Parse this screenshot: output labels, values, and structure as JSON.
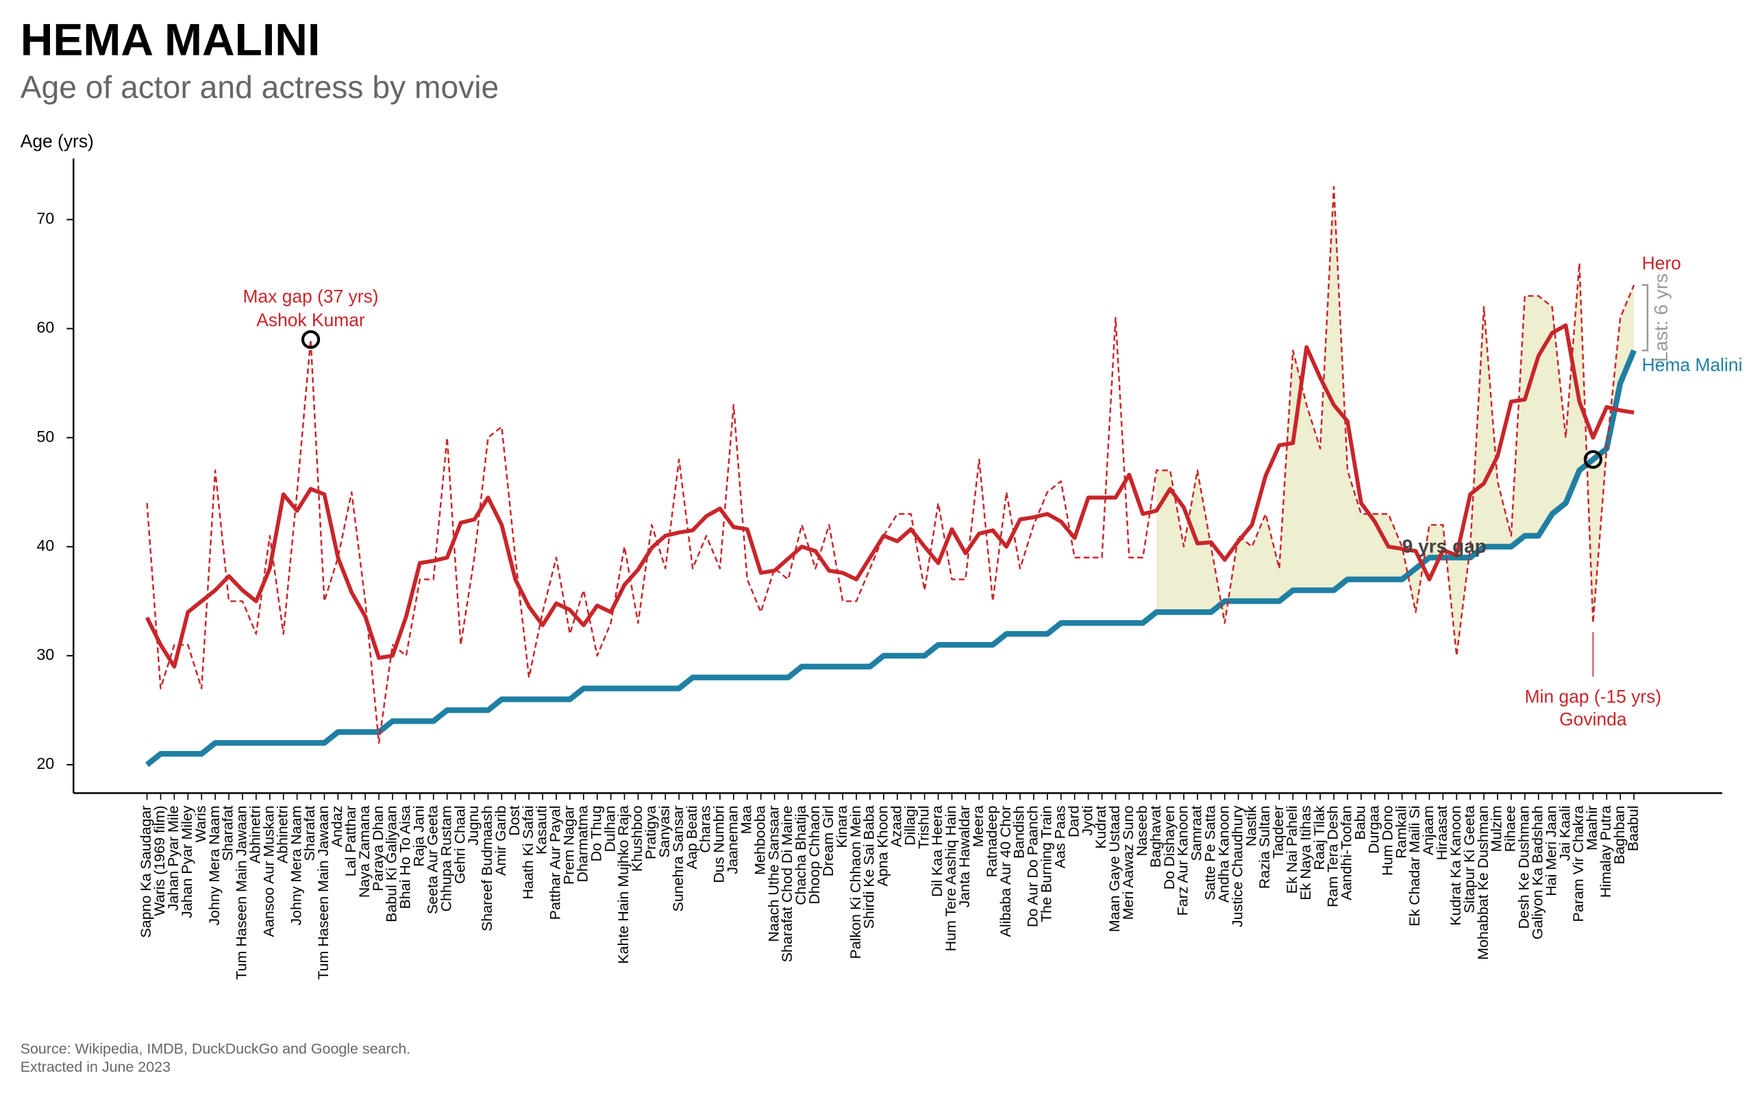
{
  "chart_data": {
    "type": "line",
    "title": "HEMA MALINI",
    "subtitle": "Age of actor and actress by movie",
    "y_label": "Age (yrs)",
    "source": [
      "Source: Wikipedia, IMDB, DuckDuckGo and Google search.",
      "Extracted in June 2023"
    ],
    "categories": [
      "Sapno Ka Saudagar",
      "Waris (1969 film)",
      "Jahan Pyar Mile",
      "Jahan Pyar Miley",
      "Waris",
      "Johny Mera Naam",
      "Sharafat",
      "Tum Haseen Main Jawaan",
      "Abhinetri",
      "Aansoo Aur Muskan",
      "Abhinetri",
      "Johny Mera Naam",
      "Sharafat",
      "Tum Haseen Main Jawaan",
      "Andaz",
      "Lal Patthar",
      "Naya Zamana",
      "Paraya Dhan",
      "Babul Ki Galiyaan",
      "Bhai Ho To Aisa",
      "Raja Jani",
      "Seeta Aur Geeta",
      "Chhupa Rustam",
      "Gehri Chaal",
      "Jugnu",
      "Shareef Budmaash",
      "Amir Garib",
      "Dost",
      "Haath Ki Safai",
      "Kasauti",
      "Patthar Aur Payal",
      "Prem Nagar",
      "Dharmatma",
      "Do Thug",
      "Dulhan",
      "Kahte Hain Mujhko Raja",
      "Khushboo",
      "Pratigya",
      "Sanyasi",
      "Sunehra Sansar",
      "Aap Beati",
      "Charas",
      "Dus Numbri",
      "Jaaneman",
      "Maa",
      "Mehbooba",
      "Naach Uthe Sansaar",
      "Sharafat Chod Di Maine",
      "Chacha Bhatija",
      "Dhoop Chhaon",
      "Dream Girl",
      "Kinara",
      "Palkon Ki Chhaon Mein",
      "Shirdi Ke Sai Baba",
      "Apna Khoon",
      "Azaad",
      "Dillagi",
      "Trishul",
      "Dil Kaa Heera",
      "Hum Tere Aashiq Hain",
      "Janta Hawaldar",
      "Meera",
      "Ratnadeep",
      "Alibaba Aur 40 Chor",
      "Bandish",
      "Do Aur Do Paanch",
      "The Burning Train",
      "Aas Paas",
      "Dard",
      "Jyoti",
      "Kudrat",
      "Maan Gaye Ustaad",
      "Meri Aawaz Suno",
      "Naseeb",
      "Baghavat",
      "Do Dishayen",
      "Farz Aur Kanoon",
      "Samraat",
      "Satte Pe Satta",
      "Andha Kanoon",
      "Justice Chaudhury",
      "Nastik",
      "Razia Sultan",
      "Taqdeer",
      "Ek Nai Paheli",
      "Ek Naya Itihas",
      "Raaj Tilak",
      "Ram Tera Desh",
      "Aandhi-Toofan",
      "Babu",
      "Durgaa",
      "Hum Dono",
      "Ramkali",
      "Ek Chadar Maili Si",
      "Anjaam",
      "Hiraasat",
      "Kudrat Ka Kanoon",
      "Sitapur Ki Geeta",
      "Mohabbat Ke Dushman",
      "Mulzim",
      "Rihaee",
      "Desh Ke Dushman",
      "Galiyon Ka Badshah",
      "Hai Meri Jaan",
      "Jai Kaali",
      "Param Vir Chakra",
      "Maahir",
      "Himalay Putra",
      "Baghban",
      "Baabul"
    ],
    "series": [
      {
        "name": "Hero",
        "color": "#c8262a",
        "dashed": true,
        "values": [
          44,
          27,
          31,
          31,
          27,
          47,
          35,
          35,
          32,
          41,
          32,
          45,
          59,
          35,
          39,
          45,
          35,
          22,
          31,
          30,
          37,
          37,
          50,
          31,
          39,
          50,
          51,
          39,
          28,
          34,
          39,
          32,
          36,
          30,
          33,
          40,
          33,
          42,
          38,
          48,
          38,
          41,
          38,
          53,
          37,
          34,
          38,
          37,
          42,
          38,
          42,
          35,
          35,
          38,
          41,
          43,
          43,
          36,
          44,
          37,
          37,
          48,
          35,
          45,
          38,
          42,
          45,
          46,
          39,
          39,
          39,
          61,
          39,
          39,
          47,
          47,
          40,
          47,
          40,
          33,
          41,
          40,
          43,
          38,
          58,
          53,
          49,
          73,
          47,
          43,
          43,
          43,
          40,
          34,
          42,
          42,
          30,
          40,
          62,
          46,
          41,
          63,
          63,
          62,
          50,
          66,
          33,
          49,
          61,
          64
        ]
      },
      {
        "color": "#c8262a",
        "values": [
          33.5,
          31,
          29,
          34,
          35,
          36,
          37.3,
          36,
          35,
          38,
          44.8,
          43.3,
          45.3,
          44.8,
          39,
          35.8,
          33.6,
          29.8,
          30,
          33.6,
          38.5,
          38.7,
          39,
          42.2,
          42.5,
          44.5,
          42,
          37,
          34.5,
          32.8,
          34.8,
          34.2,
          32.8,
          34.6,
          34,
          36.5,
          37.9,
          39.9,
          41,
          41.3,
          41.5,
          42.8,
          43.5,
          41.8,
          41.6,
          37.6,
          37.8,
          38.9,
          40,
          39.6,
          37.8,
          37.6,
          37,
          39,
          41,
          40.5,
          41.6,
          40,
          38.5,
          41.6,
          39.4,
          41.2,
          41.5,
          40,
          42.5,
          42.7,
          43,
          42.3,
          40.8,
          44.5,
          44.5,
          44.5,
          46.6,
          43,
          43.3,
          45.3,
          43.6,
          40.3,
          40.4,
          38.8,
          40.5,
          42,
          46.5,
          49.3,
          49.5,
          58.3,
          55.5,
          53,
          51.5,
          44,
          42.3,
          40,
          39.8,
          39.6,
          37,
          39.7,
          39.2,
          44.8,
          45.8,
          48.3,
          53.3,
          53.5,
          57.5,
          59.6,
          60.3,
          53.3,
          50,
          52.8,
          52.5,
          52.3
        ]
      },
      {
        "name": "Hema Malini",
        "color": "#1f7fa3",
        "values": [
          20,
          21,
          21,
          21,
          21,
          22,
          22,
          22,
          22,
          22,
          22,
          22,
          22,
          22,
          23,
          23,
          23,
          23,
          24,
          24,
          24,
          24,
          25,
          25,
          25,
          25,
          26,
          26,
          26,
          26,
          26,
          26,
          27,
          27,
          27,
          27,
          27,
          27,
          27,
          27,
          28,
          28,
          28,
          28,
          28,
          28,
          28,
          28,
          29,
          29,
          29,
          29,
          29,
          29,
          30,
          30,
          30,
          30,
          31,
          31,
          31,
          31,
          31,
          32,
          32,
          32,
          32,
          33,
          33,
          33,
          33,
          33,
          33,
          33,
          34,
          34,
          34,
          34,
          34,
          35,
          35,
          35,
          35,
          35,
          36,
          36,
          36,
          36,
          37,
          37,
          37,
          37,
          37,
          38,
          39,
          39,
          39,
          39,
          40,
          40,
          40,
          41,
          41,
          43,
          44,
          47,
          48,
          49,
          55,
          58
        ]
      }
    ],
    "shade_from": "Baghavat",
    "shade_color": "#eeeed0",
    "annotations": {
      "max_gap": [
        "Max gap (37 yrs)",
        "Ashok Kumar"
      ],
      "min_gap": [
        "Min gap (-15 yrs)",
        "Govinda"
      ],
      "gap_label": "9 yrs gap",
      "last_gap": "Last: 6 yrs"
    },
    "ylim": [
      17.4,
      75.6
    ],
    "yticks": [
      20,
      30,
      40,
      50,
      60,
      70
    ],
    "grid": false
  }
}
